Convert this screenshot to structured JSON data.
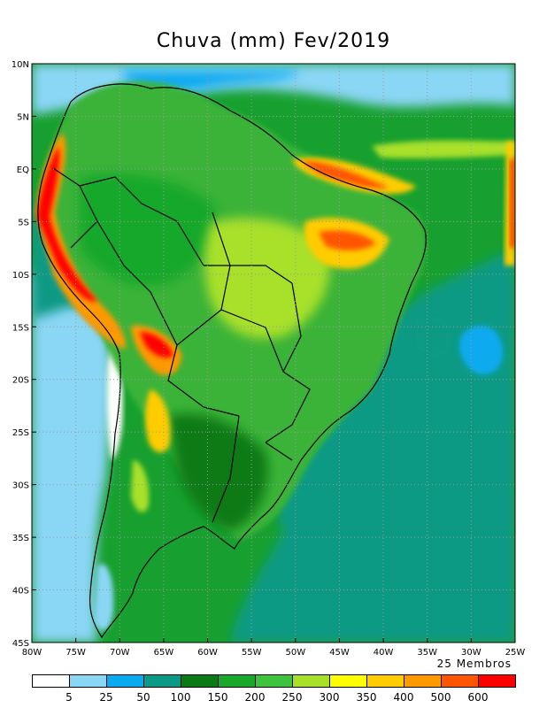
{
  "title": "Chuva (mm) Fev/2019",
  "members_note": "25 Membros",
  "map": {
    "lon_range": [
      -80,
      -25
    ],
    "lat_range": [
      -45,
      10
    ],
    "x_ticks": [
      "80W",
      "75W",
      "70W",
      "65W",
      "60W",
      "55W",
      "50W",
      "45W",
      "40W",
      "35W",
      "30W",
      "25W"
    ],
    "y_ticks": [
      "10N",
      "5N",
      "EQ",
      "5S",
      "10S",
      "15S",
      "20S",
      "25S",
      "30S",
      "35S",
      "40S",
      "45S"
    ],
    "grid": "dotted"
  },
  "legend": {
    "labels": [
      "5",
      "25",
      "50",
      "100",
      "150",
      "200",
      "250",
      "300",
      "350",
      "400",
      "500",
      "600"
    ],
    "colors": [
      "#ffffff",
      "#8ad6f5",
      "#0aaaf0",
      "#0b9a85",
      "#0a7a14",
      "#18a82a",
      "#3ec43c",
      "#a8e02a",
      "#ffff00",
      "#ffcc00",
      "#ff9900",
      "#ff5500",
      "#ff0000"
    ]
  },
  "colors": {
    "ocean_base": "#17a02f",
    "land_base": "#3bb338",
    "wet": "#0b9a85",
    "dry_light": "#8ad6f5",
    "dry": "#0aaaf0",
    "desert": "#ffffff",
    "heavy_yellow": "#ffff00",
    "heavy_orange": "#ff9900",
    "heavy_red": "#ff0000"
  }
}
